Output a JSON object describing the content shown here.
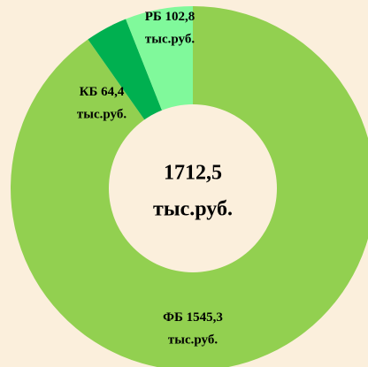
{
  "chart_data": {
    "type": "donut",
    "categories": [
      "ФБ",
      "КБ",
      "РБ"
    ],
    "values": [
      1545.3,
      64.4,
      102.8
    ],
    "value_labels": [
      "1545,3",
      "64,4",
      "102,8"
    ],
    "unit": "тыс.руб.",
    "colors": [
      "#92d050",
      "#00b050",
      "#80f99b"
    ],
    "center_text": [
      "1712,5",
      "тыс.руб."
    ]
  }
}
